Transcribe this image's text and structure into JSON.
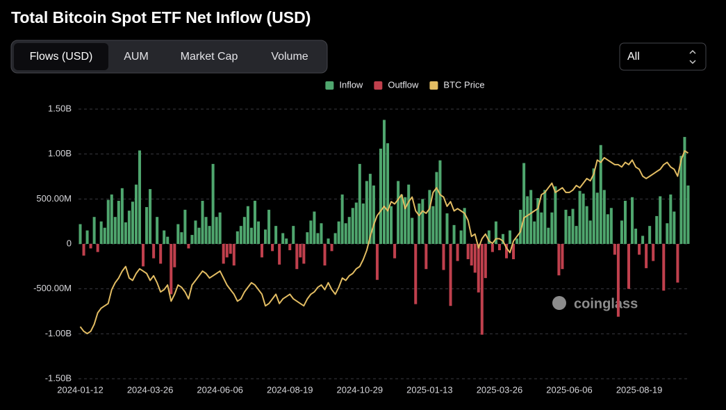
{
  "ui": {
    "tabs": [
      "Flows (USD)",
      "AUM",
      "Market Cap",
      "Volume"
    ],
    "active_tab": 0,
    "range": "All",
    "watermark": "coinglass"
  },
  "chart_data": {
    "type": "bar",
    "title": "Total Bitcoin Spot ETF Net Inflow (USD)",
    "grid": true,
    "legend": "top",
    "categories": [
      "2024-01-12",
      null,
      null,
      null,
      null,
      null,
      null,
      null,
      null,
      null,
      null,
      null,
      null,
      null,
      null,
      null,
      null,
      null,
      null,
      null,
      "2024-03-26",
      null,
      null,
      null,
      null,
      null,
      null,
      null,
      null,
      null,
      null,
      null,
      null,
      null,
      null,
      null,
      null,
      null,
      null,
      null,
      "2024-06-06",
      null,
      null,
      null,
      null,
      null,
      null,
      null,
      null,
      null,
      null,
      null,
      null,
      null,
      null,
      null,
      null,
      null,
      null,
      null,
      "2024-08-19",
      null,
      null,
      null,
      null,
      null,
      null,
      null,
      null,
      null,
      null,
      null,
      null,
      null,
      null,
      null,
      null,
      null,
      null,
      null,
      "2024-10-29",
      null,
      null,
      null,
      null,
      null,
      null,
      null,
      null,
      null,
      null,
      null,
      null,
      null,
      null,
      null,
      null,
      null,
      null,
      null,
      "2025-01-13",
      null,
      null,
      null,
      null,
      null,
      null,
      null,
      null,
      null,
      null,
      null,
      null,
      null,
      null,
      null,
      null,
      null,
      null,
      null,
      "2025-03-26",
      null,
      null,
      null,
      null,
      null,
      null,
      null,
      null,
      null,
      null,
      null,
      null,
      null,
      null,
      null,
      null,
      null,
      null,
      null,
      "2025-06-06",
      null,
      null,
      null,
      null,
      null,
      null,
      null,
      null,
      null,
      null,
      null,
      null,
      null,
      null,
      null,
      null,
      null,
      null,
      null,
      "2025-08-19",
      null,
      null,
      null,
      null,
      null,
      null,
      null,
      null,
      null,
      null,
      null,
      null,
      null,
      null
    ],
    "ylim": [
      -1500000000.0,
      1500000000.0
    ],
    "yticks": [
      {
        "value": 1500000000.0,
        "label": "1.50B"
      },
      {
        "value": 1000000000.0,
        "label": "1.00B"
      },
      {
        "value": 500000000.0,
        "label": "500.00M"
      },
      0,
      {
        "value": -500000000.0,
        "label": "-500.00M"
      },
      {
        "value": -1000000000.0,
        "label": "-1.00B"
      },
      {
        "value": -1500000000.0,
        "label": "-1.50B"
      }
    ],
    "y2lim": [
      23500,
      140000
    ],
    "series": [
      {
        "name": "Inflow",
        "type": "bar",
        "color": "#4fa66e",
        "values": [
          220000000.0,
          null,
          150000000.0,
          null,
          300000000.0,
          null,
          250000000.0,
          180000000.0,
          490000000.0,
          550000000.0,
          300000000.0,
          480000000.0,
          620000000.0,
          240000000.0,
          370000000.0,
          470000000.0,
          660000000.0,
          1040000000.0,
          null,
          410000000.0,
          610000000.0,
          null,
          300000000.0,
          null,
          150000000.0,
          80000000.0,
          null,
          null,
          220000000.0,
          130000000.0,
          380000000.0,
          null,
          100000000.0,
          260000000.0,
          180000000.0,
          480000000.0,
          300000000.0,
          200000000.0,
          890000000.0,
          300000000.0,
          350000000.0,
          null,
          null,
          null,
          null,
          140000000.0,
          200000000.0,
          300000000.0,
          420000000.0,
          180000000.0,
          480000000.0,
          250000000.0,
          null,
          160000000.0,
          380000000.0,
          null,
          200000000.0,
          null,
          120000000.0,
          60000000.0,
          null,
          200000000.0,
          null,
          null,
          null,
          130000000.0,
          260000000.0,
          360000000.0,
          120000000.0,
          230000000.0,
          null,
          60000000.0,
          null,
          120000000.0,
          250000000.0,
          550000000.0,
          230000000.0,
          300000000.0,
          400000000.0,
          460000000.0,
          890000000.0,
          450000000.0,
          700000000.0,
          780000000.0,
          650000000.0,
          null,
          1060000000.0,
          1380000000.0,
          1120000000.0,
          420000000.0,
          null,
          700000000.0,
          550000000.0,
          520000000.0,
          660000000.0,
          290000000.0,
          null,
          450000000.0,
          500000000.0,
          null,
          600000000.0,
          420000000.0,
          800000000.0,
          930000000.0,
          null,
          340000000.0,
          null,
          210000000.0,
          null,
          150000000.0,
          400000000.0,
          null,
          null,
          null,
          null,
          null,
          null,
          150000000.0,
          null,
          250000000.0,
          null,
          110000000.0,
          null,
          150000000.0,
          null,
          60000000.0,
          380000000.0,
          900000000.0,
          530000000.0,
          600000000.0,
          250000000.0,
          510000000.0,
          350000000.0,
          600000000.0,
          180000000.0,
          350000000.0,
          640000000.0,
          null,
          null,
          380000000.0,
          310000000.0,
          390000000.0,
          200000000.0,
          590000000.0,
          560000000.0,
          420000000.0,
          260000000.0,
          840000000.0,
          570000000.0,
          1100000000.0,
          600000000.0,
          330000000.0,
          400000000.0,
          null,
          null,
          260000000.0,
          480000000.0,
          null,
          520000000.0,
          170000000.0,
          null,
          90000000.0,
          null,
          200000000.0,
          null,
          310000000.0,
          530000000.0,
          null,
          230000000.0,
          550000000.0,
          360000000.0,
          null,
          980000000.0,
          1190000000.0,
          650000000.0
        ]
      },
      {
        "name": "Outflow",
        "type": "bar",
        "color": "#c0404d",
        "values": [
          null,
          -130000000.0,
          null,
          -50000000.0,
          null,
          -90000000.0,
          null,
          null,
          null,
          null,
          null,
          null,
          null,
          null,
          null,
          null,
          null,
          null,
          -250000000.0,
          null,
          null,
          -160000000.0,
          null,
          -220000000.0,
          null,
          null,
          -560000000.0,
          -260000000.0,
          null,
          null,
          null,
          -50000000.0,
          null,
          null,
          null,
          null,
          null,
          null,
          null,
          null,
          null,
          -220000000.0,
          -150000000.0,
          -110000000.0,
          -240000000.0,
          null,
          null,
          null,
          null,
          null,
          null,
          null,
          -150000000.0,
          null,
          null,
          -80000000.0,
          null,
          -230000000.0,
          null,
          null,
          -70000000.0,
          null,
          -280000000.0,
          -150000000.0,
          -220000000.0,
          null,
          null,
          null,
          null,
          null,
          -240000000.0,
          null,
          -80000000.0,
          null,
          null,
          null,
          null,
          null,
          null,
          null,
          null,
          null,
          null,
          null,
          null,
          -400000000.0,
          null,
          null,
          null,
          null,
          -160000000.0,
          null,
          null,
          null,
          null,
          null,
          -670000000.0,
          null,
          null,
          -280000000.0,
          null,
          null,
          null,
          null,
          -290000000.0,
          null,
          -690000000.0,
          null,
          -190000000.0,
          null,
          null,
          -170000000.0,
          -240000000.0,
          -320000000.0,
          -540000000.0,
          -1010000000.0,
          -380000000.0,
          null,
          -90000000.0,
          null,
          -70000000.0,
          null,
          -160000000.0,
          null,
          -170000000.0,
          null,
          null,
          null,
          null,
          null,
          null,
          null,
          null,
          null,
          null,
          null,
          null,
          -350000000.0,
          -280000000.0,
          null,
          null,
          null,
          null,
          null,
          null,
          null,
          null,
          null,
          null,
          null,
          null,
          null,
          null,
          -120000000.0,
          -810000000.0,
          null,
          null,
          -500000000.0,
          null,
          null,
          -120000000.0,
          null,
          -270000000.0,
          null,
          -190000000.0,
          null,
          null,
          -520000000.0,
          null,
          null,
          null,
          -430000000.0,
          null,
          null,
          null
        ]
      },
      {
        "name": "BTC Price",
        "type": "line",
        "axis": "y2",
        "color": "#e3bd63",
        "values": [
          46000,
          44000,
          43000,
          44000,
          47000,
          52000,
          54000,
          55000,
          56000,
          62000,
          65000,
          67000,
          70000,
          72000,
          67000,
          66000,
          69000,
          71000,
          70000,
          69000,
          66000,
          68000,
          65000,
          61000,
          62000,
          64000,
          57000,
          60000,
          64000,
          63000,
          61000,
          58000,
          64000,
          66000,
          68000,
          70000,
          69000,
          67000,
          68000,
          69000,
          70000,
          67000,
          64000,
          62000,
          60000,
          57000,
          58000,
          61000,
          63000,
          65000,
          64000,
          62000,
          60000,
          55000,
          56000,
          58000,
          60000,
          56000,
          58000,
          59000,
          60000,
          58000,
          57000,
          56000,
          55000,
          58000,
          60000,
          61000,
          63000,
          64000,
          62000,
          65000,
          62000,
          60000,
          63000,
          67000,
          66000,
          68000,
          69000,
          71000,
          72000,
          75000,
          79000,
          85000,
          90000,
          94000,
          96000,
          98000,
          96000,
          100000,
          99000,
          101000,
          103000,
          97000,
          100000,
          102000,
          96000,
          94000,
          96000,
          95000,
          97000,
          104000,
          106000,
          103000,
          102000,
          98000,
          100000,
          96000,
          97000,
          96000,
          95000,
          92000,
          85000,
          86000,
          80000,
          84000,
          86000,
          83000,
          82000,
          84000,
          84000,
          83000,
          80000,
          78000,
          83000,
          85000,
          87000,
          93000,
          94000,
          95000,
          96000,
          97000,
          103000,
          104000,
          106000,
          108000,
          104000,
          105000,
          106000,
          104000,
          104000,
          105000,
          107000,
          106000,
          108000,
          110000,
          109000,
          112000,
          118000,
          117000,
          119000,
          118000,
          117000,
          116000,
          116000,
          115000,
          117000,
          116000,
          118000,
          115000,
          114000,
          111000,
          110000,
          111000,
          112000,
          113000,
          114000,
          116000,
          117000,
          115000,
          114000,
          111000,
          118000,
          122000,
          121000
        ]
      }
    ]
  }
}
